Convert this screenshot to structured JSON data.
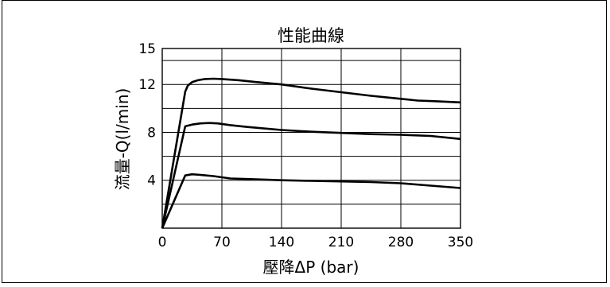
{
  "chart_data": {
    "type": "line",
    "title": "性能曲線",
    "xlabel": "壓降ΔP (bar)",
    "ylabel": "流量-Q(l/min)",
    "xlim": [
      0,
      350
    ],
    "ylim": [
      0,
      15
    ],
    "xticks": [
      0,
      70,
      140,
      210,
      280,
      350
    ],
    "yticks": [
      4,
      8,
      12,
      15
    ],
    "xtick_labels": [
      "0",
      "70",
      "140",
      "210",
      "280",
      "350"
    ],
    "ytick_labels": [
      "4",
      "8",
      "12",
      "15"
    ],
    "grid": true,
    "grid_x": [
      0,
      70,
      140,
      210,
      280,
      350
    ],
    "grid_y": [
      0,
      2,
      4,
      6,
      8,
      10,
      12,
      14,
      15
    ],
    "series": [
      {
        "x": [
          0,
          27,
          30,
          35,
          42,
          50,
          60,
          70,
          90,
          110,
          140,
          175,
          210,
          245,
          280,
          300,
          320,
          350
        ],
        "values": [
          0,
          11.4,
          11.9,
          12.2,
          12.35,
          12.45,
          12.48,
          12.45,
          12.35,
          12.2,
          12.0,
          11.65,
          11.35,
          11.05,
          10.8,
          10.65,
          10.6,
          10.5
        ]
      },
      {
        "x": [
          0,
          27,
          35,
          45,
          55,
          65,
          80,
          100,
          140,
          175,
          210,
          245,
          280,
          315,
          350
        ],
        "values": [
          0,
          8.5,
          8.65,
          8.75,
          8.78,
          8.75,
          8.6,
          8.45,
          8.2,
          8.05,
          7.95,
          7.85,
          7.8,
          7.7,
          7.45
        ]
      },
      {
        "x": [
          0,
          27,
          35,
          45,
          60,
          80,
          100,
          140,
          175,
          210,
          245,
          280,
          315,
          350
        ],
        "values": [
          0,
          4.4,
          4.5,
          4.45,
          4.35,
          4.15,
          4.1,
          4.0,
          3.95,
          3.9,
          3.85,
          3.75,
          3.55,
          3.35
        ]
      }
    ]
  }
}
